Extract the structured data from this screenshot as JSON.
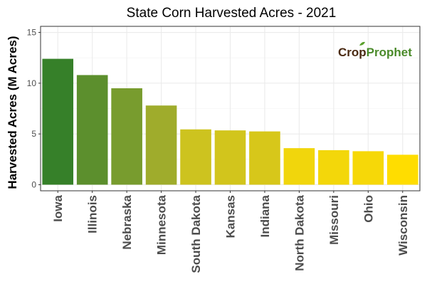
{
  "chart_data": {
    "type": "bar",
    "title": "State Corn Harvested Acres - 2021",
    "xlabel": "",
    "ylabel": "Harvested Acres (M Acres)",
    "categories": [
      "Iowa",
      "Illinois",
      "Nebraska",
      "Minnesota",
      "South Dakota",
      "Kansas",
      "Indiana",
      "North Dakota",
      "Missouri",
      "Ohio",
      "Wisconsin"
    ],
    "values": [
      12.4,
      10.8,
      9.5,
      7.8,
      5.45,
      5.35,
      5.25,
      3.6,
      3.4,
      3.3,
      2.95
    ],
    "ylim": [
      -0.6,
      15.6
    ],
    "yticks": [
      0,
      5,
      10,
      15
    ],
    "grid": true,
    "colors": [
      "#368029",
      "#5c8f2d",
      "#789c2e",
      "#9fac2c",
      "#cdc31f",
      "#d2c51c",
      "#d7c71a",
      "#f1d60c",
      "#f3d70a",
      "#f6d808",
      "#ffdd00"
    ]
  },
  "logo": {
    "part1": "Crop",
    "part2": "Prophet"
  }
}
